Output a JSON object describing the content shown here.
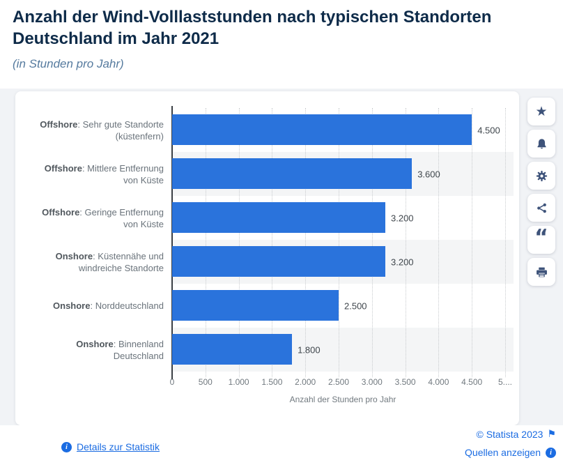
{
  "header": {
    "title_line1": "Anzahl der Wind-Volllaststunden nach typischen Standorten",
    "title_line2": "Deutschland im Jahr 2021",
    "subtitle": "(in Stunden pro Jahr)"
  },
  "chart_data": {
    "type": "bar",
    "orientation": "horizontal",
    "title": "Anzahl der Wind-Volllaststunden nach typischen Standorten Deutschland im Jahr 2021",
    "subtitle": "(in Stunden pro Jahr)",
    "categories": [
      {
        "prefix": "Offshore",
        "rest": ": Sehr gute Standorte (küstenfern)"
      },
      {
        "prefix": "Offshore",
        "rest": ": Mittlere Entfernung von Küste"
      },
      {
        "prefix": "Offshore",
        "rest": ": Geringe Entfernung von Küste"
      },
      {
        "prefix": "Onshore",
        "rest": ": Küstennähe und windreiche Standorte"
      },
      {
        "prefix": "Onshore",
        "rest": ": Norddeutschland"
      },
      {
        "prefix": "Onshore",
        "rest": ": Binnenland Deutschland"
      }
    ],
    "values": [
      4500,
      3600,
      3200,
      3200,
      2500,
      1800
    ],
    "value_labels": [
      "4.500",
      "3.600",
      "3.200",
      "3.200",
      "2.500",
      "1.800"
    ],
    "xlabel": "Anzahl der Stunden pro Jahr",
    "ylabel": "",
    "xlim": [
      0,
      5125
    ],
    "x_ticks": [
      {
        "label": "0",
        "value": 0
      },
      {
        "label": "500",
        "value": 500
      },
      {
        "label": "1.000",
        "value": 1000
      },
      {
        "label": "1.500",
        "value": 1500
      },
      {
        "label": "2.000",
        "value": 2000
      },
      {
        "label": "2.500",
        "value": 2500
      },
      {
        "label": "3.000",
        "value": 3000
      },
      {
        "label": "3.500",
        "value": 3500
      },
      {
        "label": "4.000",
        "value": 4000
      },
      {
        "label": "4.500",
        "value": 4500
      },
      {
        "label": "5....",
        "value": 5000
      }
    ],
    "grid": true,
    "legend": false,
    "bar_color": "#2a73dc",
    "row_stripe_color": "#f4f5f6"
  },
  "toolbar": {
    "buttons": [
      {
        "name": "favorite",
        "icon": "star"
      },
      {
        "name": "alerts",
        "icon": "bell"
      },
      {
        "name": "settings",
        "icon": "gear"
      },
      {
        "name": "share",
        "icon": "share"
      },
      {
        "name": "cite",
        "icon": "quote"
      },
      {
        "name": "print",
        "icon": "printer"
      }
    ]
  },
  "footer": {
    "details_link": "Details zur Statistik",
    "copyright": "© Statista 2023",
    "sources_link": "Quellen anzeigen"
  }
}
